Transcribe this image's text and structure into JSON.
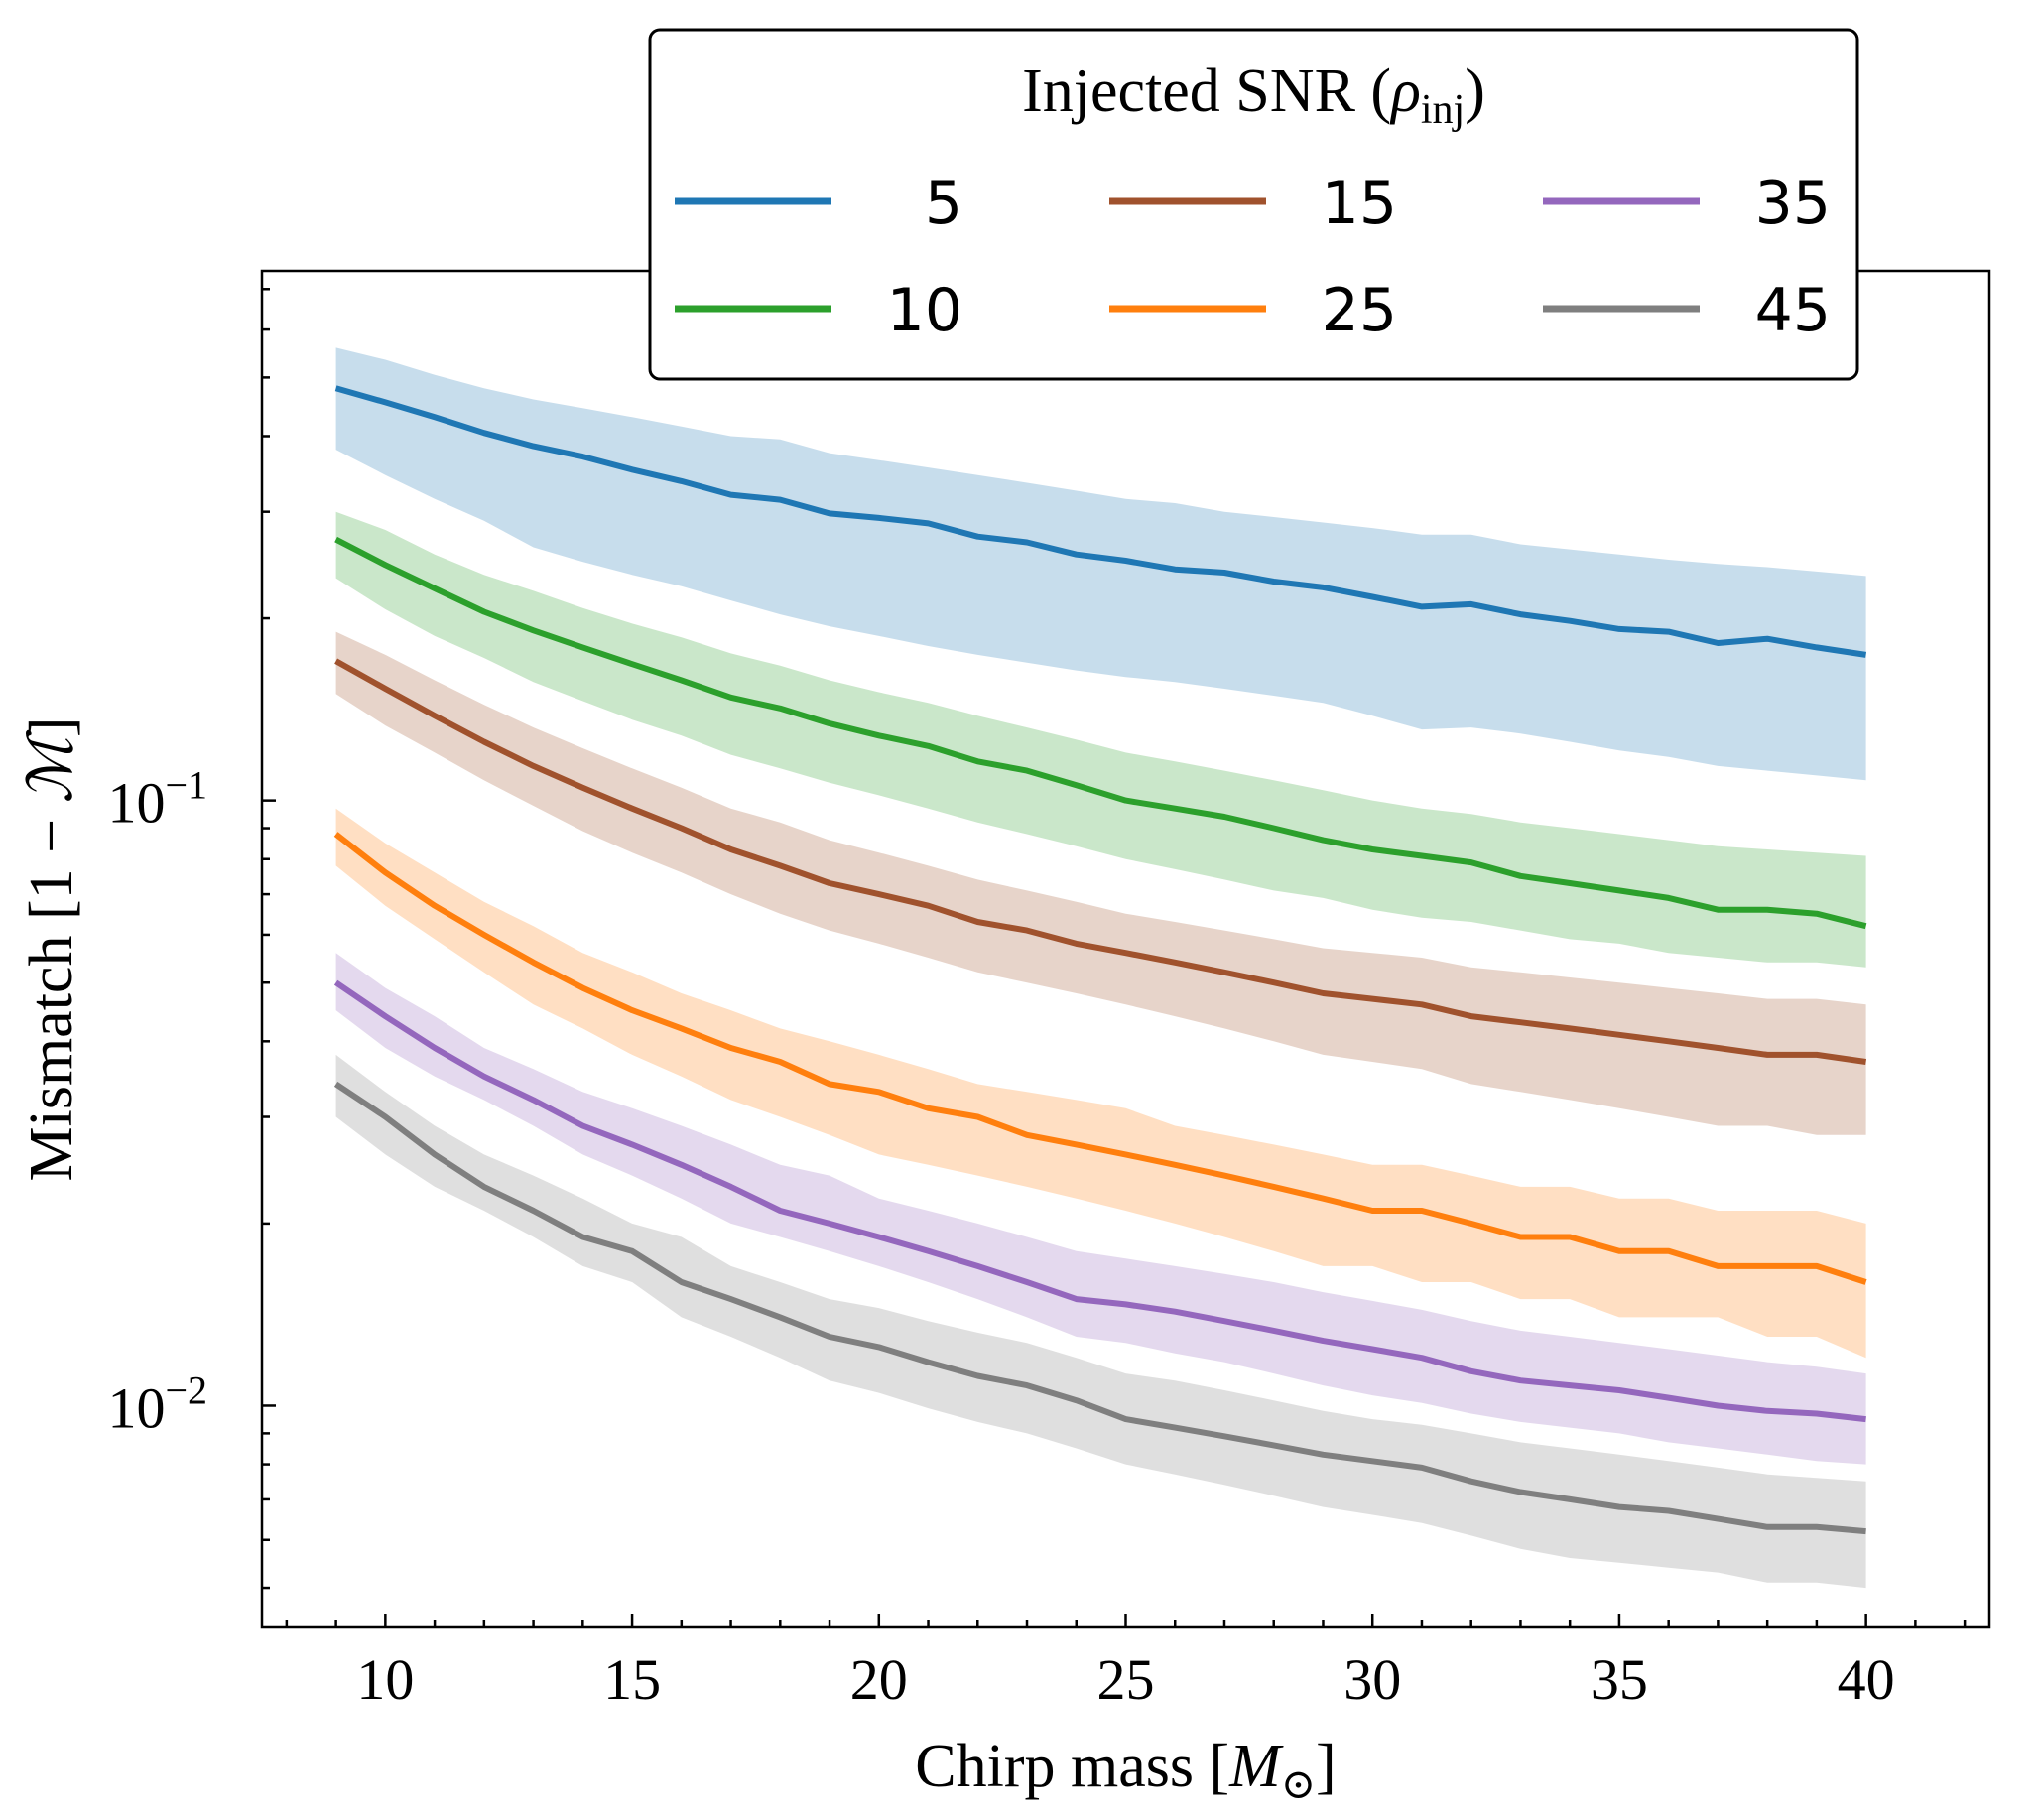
{
  "chart_data": {
    "type": "line",
    "xlabel": "Chirp mass [",
    "xlabel_symbol": "M",
    "xlabel_sub": "⊙",
    "xlabel_end": "]",
    "ylabel": "Mismatch [1 − ",
    "ylabel_symbol": "ℳ",
    "ylabel_end": "]",
    "yscale": "log",
    "xlim": [
      7.5,
      42.5
    ],
    "ylim": [
      0.0043,
      0.75
    ],
    "x_ticks": [
      10,
      15,
      20,
      25,
      30,
      35,
      40
    ],
    "x_tick_labels": [
      "10",
      "15",
      "20",
      "25",
      "30",
      "35",
      "40"
    ],
    "y_ticks": [
      0.1,
      0.01
    ],
    "y_tick_labels": [
      {
        "base": "10",
        "exp": "−1"
      },
      {
        "base": "10",
        "exp": "−2"
      }
    ],
    "legend": {
      "title": "Injected SNR (",
      "title_symbol": "ρ",
      "title_sub": "inj",
      "title_end": ")",
      "placement": "top-center",
      "columns": 3
    },
    "x": [
      9,
      10,
      11,
      12,
      13,
      14,
      15,
      16,
      17,
      18,
      19,
      20,
      21,
      22,
      23,
      24,
      25,
      26,
      27,
      28,
      29,
      30,
      31,
      32,
      33,
      34,
      35,
      36,
      37,
      38,
      39,
      40
    ],
    "series": [
      {
        "name": "5",
        "color": "#1f77b4",
        "values": [
          0.48,
          0.455,
          0.43,
          0.405,
          0.385,
          0.37,
          0.352,
          0.337,
          0.32,
          0.314,
          0.298,
          0.293,
          0.287,
          0.273,
          0.267,
          0.255,
          0.249,
          0.241,
          0.238,
          0.23,
          0.225,
          0.217,
          0.209,
          0.211,
          0.203,
          0.198,
          0.192,
          0.19,
          0.182,
          0.185,
          0.179,
          0.174
        ],
        "lower": [
          0.38,
          0.345,
          0.315,
          0.29,
          0.262,
          0.248,
          0.236,
          0.226,
          0.214,
          0.203,
          0.194,
          0.187,
          0.18,
          0.174,
          0.169,
          0.164,
          0.16,
          0.157,
          0.153,
          0.149,
          0.145,
          0.138,
          0.131,
          0.132,
          0.129,
          0.125,
          0.121,
          0.118,
          0.114,
          0.112,
          0.11,
          0.108
        ],
        "upper": [
          0.56,
          0.535,
          0.505,
          0.48,
          0.46,
          0.445,
          0.43,
          0.415,
          0.4,
          0.395,
          0.375,
          0.365,
          0.355,
          0.345,
          0.335,
          0.325,
          0.315,
          0.31,
          0.3,
          0.294,
          0.288,
          0.282,
          0.275,
          0.275,
          0.265,
          0.26,
          0.255,
          0.25,
          0.246,
          0.243,
          0.239,
          0.235
        ]
      },
      {
        "name": "10",
        "color": "#2ca02c",
        "values": [
          0.27,
          0.245,
          0.224,
          0.205,
          0.191,
          0.179,
          0.168,
          0.158,
          0.148,
          0.142,
          0.134,
          0.128,
          0.123,
          0.116,
          0.112,
          0.106,
          0.1,
          0.097,
          0.094,
          0.09,
          0.086,
          0.083,
          0.081,
          0.079,
          0.075,
          0.073,
          0.071,
          0.069,
          0.066,
          0.066,
          0.065,
          0.062
        ],
        "lower": [
          0.233,
          0.207,
          0.187,
          0.172,
          0.157,
          0.146,
          0.136,
          0.128,
          0.119,
          0.113,
          0.107,
          0.102,
          0.097,
          0.092,
          0.088,
          0.084,
          0.08,
          0.077,
          0.074,
          0.071,
          0.069,
          0.066,
          0.064,
          0.063,
          0.061,
          0.059,
          0.058,
          0.056,
          0.055,
          0.054,
          0.054,
          0.053
        ],
        "upper": [
          0.3,
          0.28,
          0.255,
          0.236,
          0.222,
          0.208,
          0.196,
          0.186,
          0.175,
          0.167,
          0.158,
          0.151,
          0.145,
          0.138,
          0.132,
          0.126,
          0.12,
          0.116,
          0.112,
          0.108,
          0.104,
          0.1,
          0.097,
          0.095,
          0.092,
          0.09,
          0.088,
          0.086,
          0.084,
          0.083,
          0.082,
          0.081
        ]
      },
      {
        "name": "15",
        "color": "#a0522d",
        "values": [
          0.17,
          0.153,
          0.138,
          0.125,
          0.114,
          0.105,
          0.097,
          0.09,
          0.083,
          0.078,
          0.073,
          0.07,
          0.067,
          0.063,
          0.061,
          0.058,
          0.056,
          0.054,
          0.052,
          0.05,
          0.048,
          0.047,
          0.046,
          0.044,
          0.043,
          0.042,
          0.041,
          0.04,
          0.039,
          0.038,
          0.038,
          0.037
        ],
        "lower": [
          0.15,
          0.133,
          0.12,
          0.108,
          0.098,
          0.089,
          0.082,
          0.076,
          0.07,
          0.065,
          0.061,
          0.058,
          0.055,
          0.052,
          0.05,
          0.048,
          0.046,
          0.044,
          0.042,
          0.04,
          0.038,
          0.037,
          0.036,
          0.034,
          0.033,
          0.032,
          0.031,
          0.03,
          0.029,
          0.029,
          0.028,
          0.028
        ],
        "upper": [
          0.19,
          0.174,
          0.158,
          0.144,
          0.132,
          0.122,
          0.113,
          0.105,
          0.097,
          0.092,
          0.086,
          0.082,
          0.078,
          0.074,
          0.071,
          0.068,
          0.065,
          0.063,
          0.061,
          0.059,
          0.057,
          0.056,
          0.055,
          0.053,
          0.052,
          0.051,
          0.05,
          0.049,
          0.048,
          0.047,
          0.047,
          0.046
        ]
      },
      {
        "name": "25",
        "color": "#ff7f0e",
        "values": [
          0.088,
          0.076,
          0.067,
          0.06,
          0.054,
          0.049,
          0.045,
          0.042,
          0.039,
          0.037,
          0.034,
          0.033,
          0.031,
          0.03,
          0.028,
          0.027,
          0.026,
          0.025,
          0.024,
          0.023,
          0.022,
          0.021,
          0.021,
          0.02,
          0.019,
          0.019,
          0.018,
          0.018,
          0.017,
          0.017,
          0.017,
          0.016
        ],
        "lower": [
          0.078,
          0.067,
          0.059,
          0.052,
          0.046,
          0.042,
          0.038,
          0.035,
          0.032,
          0.03,
          0.028,
          0.026,
          0.025,
          0.024,
          0.023,
          0.022,
          0.021,
          0.02,
          0.019,
          0.018,
          0.017,
          0.017,
          0.016,
          0.016,
          0.015,
          0.015,
          0.014,
          0.014,
          0.014,
          0.013,
          0.013,
          0.012
        ],
        "upper": [
          0.097,
          0.085,
          0.076,
          0.068,
          0.062,
          0.056,
          0.052,
          0.048,
          0.045,
          0.042,
          0.04,
          0.038,
          0.036,
          0.034,
          0.033,
          0.032,
          0.031,
          0.029,
          0.028,
          0.027,
          0.026,
          0.025,
          0.025,
          0.024,
          0.023,
          0.023,
          0.022,
          0.022,
          0.021,
          0.021,
          0.021,
          0.02
        ]
      },
      {
        "name": "35",
        "color": "#9467bd",
        "values": [
          0.05,
          0.044,
          0.039,
          0.035,
          0.032,
          0.029,
          0.027,
          0.025,
          0.023,
          0.021,
          0.02,
          0.019,
          0.018,
          0.017,
          0.016,
          0.015,
          0.0147,
          0.0143,
          0.0138,
          0.0133,
          0.0128,
          0.0124,
          0.012,
          0.0114,
          0.011,
          0.0108,
          0.0106,
          0.0103,
          0.01,
          0.0098,
          0.0097,
          0.0095
        ],
        "lower": [
          0.045,
          0.039,
          0.035,
          0.032,
          0.029,
          0.026,
          0.024,
          0.022,
          0.02,
          0.019,
          0.018,
          0.017,
          0.016,
          0.015,
          0.014,
          0.013,
          0.0127,
          0.0122,
          0.0118,
          0.0113,
          0.0108,
          0.0104,
          0.0101,
          0.0097,
          0.0094,
          0.0092,
          0.009,
          0.0087,
          0.0085,
          0.0083,
          0.0081,
          0.008
        ],
        "upper": [
          0.056,
          0.049,
          0.044,
          0.039,
          0.036,
          0.033,
          0.031,
          0.029,
          0.027,
          0.025,
          0.024,
          0.022,
          0.021,
          0.02,
          0.019,
          0.018,
          0.0175,
          0.017,
          0.0165,
          0.016,
          0.0154,
          0.0149,
          0.0144,
          0.0138,
          0.0133,
          0.013,
          0.0127,
          0.0124,
          0.0121,
          0.0118,
          0.0116,
          0.0113
        ]
      },
      {
        "name": "45",
        "color": "#7f7f7f",
        "values": [
          0.034,
          0.03,
          0.026,
          0.023,
          0.021,
          0.019,
          0.018,
          0.016,
          0.015,
          0.014,
          0.013,
          0.0125,
          0.0118,
          0.0112,
          0.0108,
          0.0102,
          0.0095,
          0.0092,
          0.0089,
          0.0086,
          0.0083,
          0.0081,
          0.0079,
          0.0075,
          0.0072,
          0.007,
          0.0068,
          0.0067,
          0.0065,
          0.0063,
          0.0063,
          0.0062
        ],
        "lower": [
          0.03,
          0.026,
          0.023,
          0.021,
          0.019,
          0.017,
          0.016,
          0.014,
          0.013,
          0.012,
          0.011,
          0.0105,
          0.0099,
          0.0094,
          0.009,
          0.0085,
          0.008,
          0.0077,
          0.0074,
          0.0071,
          0.0068,
          0.0066,
          0.0064,
          0.0061,
          0.0058,
          0.0056,
          0.0055,
          0.0054,
          0.0053,
          0.0051,
          0.0051,
          0.005
        ],
        "upper": [
          0.038,
          0.033,
          0.029,
          0.026,
          0.024,
          0.022,
          0.02,
          0.019,
          0.017,
          0.016,
          0.015,
          0.0145,
          0.0138,
          0.0132,
          0.0127,
          0.012,
          0.0113,
          0.011,
          0.0106,
          0.0102,
          0.0098,
          0.0095,
          0.0093,
          0.009,
          0.0087,
          0.0085,
          0.0083,
          0.0081,
          0.0079,
          0.0077,
          0.0076,
          0.0075
        ]
      }
    ]
  }
}
